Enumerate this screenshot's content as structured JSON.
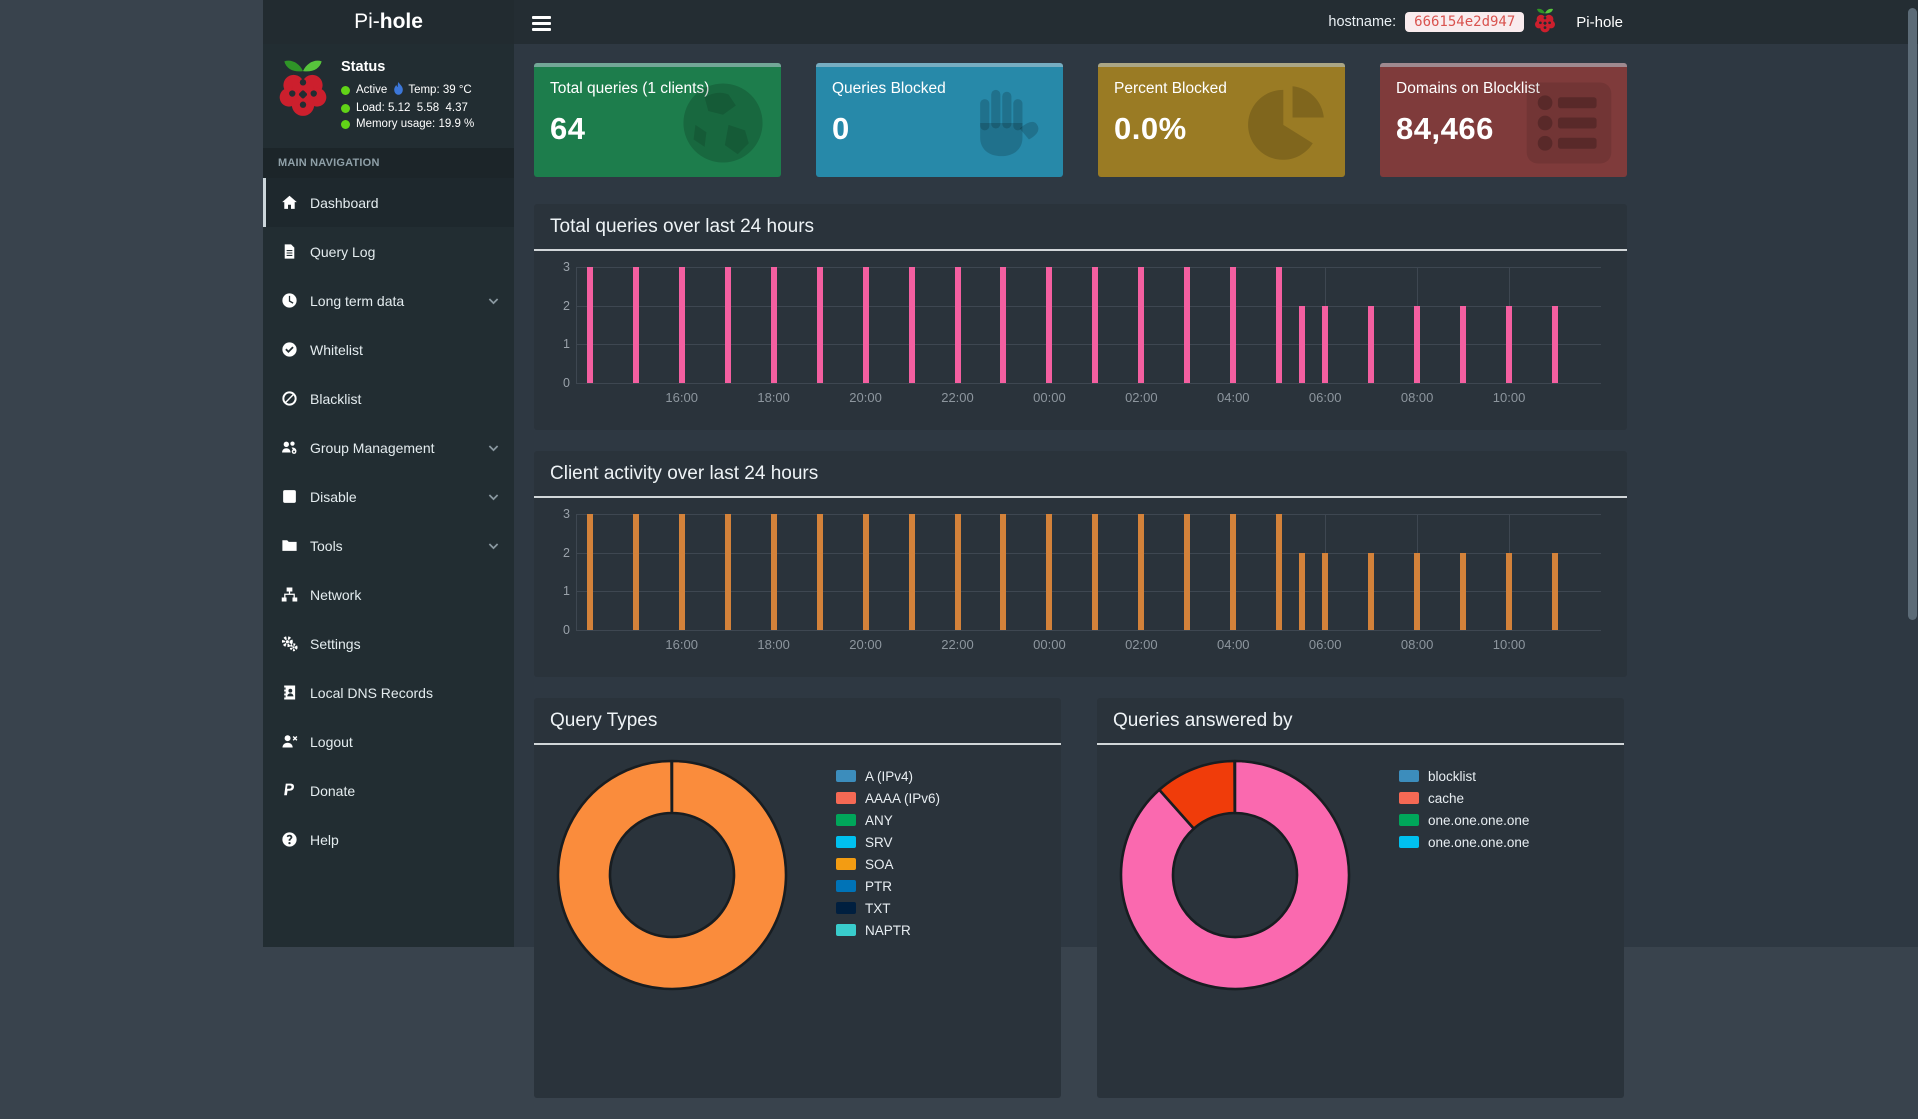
{
  "header": {
    "brand_prefix": "Pi-",
    "brand_suffix": "hole",
    "hostname_label": "hostname:",
    "hostname_value": "666154e2d947",
    "brand_right": "Pi-hole"
  },
  "sidebar": {
    "status": {
      "title": "Status",
      "active_label": "Active",
      "temp_text": "Temp: 39 °C",
      "load_label": "Load:",
      "load_values": "5.12  5.58  4.37",
      "memory_label": "Memory usage:",
      "memory_value": "19.9 %",
      "dot_color": "#61d317",
      "flame_color": "#3c77d9"
    },
    "section_label": "MAIN NAVIGATION",
    "items": [
      {
        "label": "Dashboard",
        "icon": "home",
        "active": true
      },
      {
        "label": "Query Log",
        "icon": "file"
      },
      {
        "label": "Long term data",
        "icon": "clock",
        "expandable": true
      },
      {
        "label": "Whitelist",
        "icon": "check-circle"
      },
      {
        "label": "Blacklist",
        "icon": "ban"
      },
      {
        "label": "Group Management",
        "icon": "users-gear",
        "expandable": true
      },
      {
        "label": "Disable",
        "icon": "square",
        "expandable": true
      },
      {
        "label": "Tools",
        "icon": "folder",
        "expandable": true
      },
      {
        "label": "Network",
        "icon": "sitemap"
      },
      {
        "label": "Settings",
        "icon": "gears"
      },
      {
        "label": "Local DNS Records",
        "icon": "address-book"
      },
      {
        "label": "Logout",
        "icon": "user-x"
      },
      {
        "label": "Donate",
        "icon": "paypal"
      },
      {
        "label": "Help",
        "icon": "question-circle"
      }
    ]
  },
  "cards": [
    {
      "label": "Total queries (1 clients)",
      "value": "64",
      "color": "#1d7d4c",
      "icon": "globe"
    },
    {
      "label": "Queries Blocked",
      "value": "0",
      "color": "#2789a9",
      "icon": "hand"
    },
    {
      "label": "Percent Blocked",
      "value": "0.0%",
      "color": "#9a7b24",
      "icon": "pie"
    },
    {
      "label": "Domains on Blocklist",
      "value": "84,466",
      "color": "#7f3b3b",
      "icon": "list"
    }
  ],
  "chart_data": [
    {
      "type": "bar",
      "title": "Total queries over last 24 hours",
      "color": "#f45fa0",
      "ylim": [
        0,
        3
      ],
      "y_ticks": [
        0,
        1,
        2,
        3
      ],
      "grid": true,
      "x_domain_hours": [
        13.7,
        36.0
      ],
      "x_ticks": [
        {
          "t": 16,
          "label": "16:00"
        },
        {
          "t": 18,
          "label": "18:00"
        },
        {
          "t": 20,
          "label": "20:00"
        },
        {
          "t": 22,
          "label": "22:00"
        },
        {
          "t": 24,
          "label": "00:00"
        },
        {
          "t": 26,
          "label": "02:00"
        },
        {
          "t": 28,
          "label": "04:00"
        },
        {
          "t": 30,
          "label": "06:00"
        },
        {
          "t": 32,
          "label": "08:00"
        },
        {
          "t": 34,
          "label": "10:00"
        }
      ],
      "bars": [
        {
          "t": 14,
          "time": "14:00",
          "v": 3
        },
        {
          "t": 15,
          "time": "15:00",
          "v": 3
        },
        {
          "t": 16,
          "time": "16:00",
          "v": 3
        },
        {
          "t": 17,
          "time": "17:00",
          "v": 3
        },
        {
          "t": 18,
          "time": "18:00",
          "v": 3
        },
        {
          "t": 19,
          "time": "19:00",
          "v": 3
        },
        {
          "t": 20,
          "time": "20:00",
          "v": 3
        },
        {
          "t": 21,
          "time": "21:00",
          "v": 3
        },
        {
          "t": 22,
          "time": "22:00",
          "v": 3
        },
        {
          "t": 23,
          "time": "23:00",
          "v": 3
        },
        {
          "t": 24,
          "time": "00:00",
          "v": 3
        },
        {
          "t": 25,
          "time": "01:00",
          "v": 3
        },
        {
          "t": 26,
          "time": "02:00",
          "v": 3
        },
        {
          "t": 27,
          "time": "03:00",
          "v": 3
        },
        {
          "t": 28,
          "time": "04:00",
          "v": 3
        },
        {
          "t": 29,
          "time": "05:00",
          "v": 3
        },
        {
          "t": 29.5,
          "time": "05:30",
          "v": 2
        },
        {
          "t": 30,
          "time": "06:00",
          "v": 2
        },
        {
          "t": 31,
          "time": "07:00",
          "v": 2
        },
        {
          "t": 32,
          "time": "08:00",
          "v": 2
        },
        {
          "t": 33,
          "time": "09:00",
          "v": 2
        },
        {
          "t": 34,
          "time": "10:00",
          "v": 2
        },
        {
          "t": 35,
          "time": "11:00",
          "v": 2
        }
      ]
    },
    {
      "type": "bar",
      "title": "Client activity over last 24 hours",
      "color": "#d3823a",
      "ylim": [
        0,
        3
      ],
      "y_ticks": [
        0,
        1,
        2,
        3
      ],
      "grid": true,
      "x_domain_hours": [
        13.7,
        36.0
      ],
      "x_ticks": [
        {
          "t": 16,
          "label": "16:00"
        },
        {
          "t": 18,
          "label": "18:00"
        },
        {
          "t": 20,
          "label": "20:00"
        },
        {
          "t": 22,
          "label": "22:00"
        },
        {
          "t": 24,
          "label": "00:00"
        },
        {
          "t": 26,
          "label": "02:00"
        },
        {
          "t": 28,
          "label": "04:00"
        },
        {
          "t": 30,
          "label": "06:00"
        },
        {
          "t": 32,
          "label": "08:00"
        },
        {
          "t": 34,
          "label": "10:00"
        }
      ],
      "bars": [
        {
          "t": 14,
          "time": "14:00",
          "v": 3
        },
        {
          "t": 15,
          "time": "15:00",
          "v": 3
        },
        {
          "t": 16,
          "time": "16:00",
          "v": 3
        },
        {
          "t": 17,
          "time": "17:00",
          "v": 3
        },
        {
          "t": 18,
          "time": "18:00",
          "v": 3
        },
        {
          "t": 19,
          "time": "19:00",
          "v": 3
        },
        {
          "t": 20,
          "time": "20:00",
          "v": 3
        },
        {
          "t": 21,
          "time": "21:00",
          "v": 3
        },
        {
          "t": 22,
          "time": "22:00",
          "v": 3
        },
        {
          "t": 23,
          "time": "23:00",
          "v": 3
        },
        {
          "t": 24,
          "time": "00:00",
          "v": 3
        },
        {
          "t": 25,
          "time": "01:00",
          "v": 3
        },
        {
          "t": 26,
          "time": "02:00",
          "v": 3
        },
        {
          "t": 27,
          "time": "03:00",
          "v": 3
        },
        {
          "t": 28,
          "time": "04:00",
          "v": 3
        },
        {
          "t": 29,
          "time": "05:00",
          "v": 3
        },
        {
          "t": 29.5,
          "time": "05:30",
          "v": 2
        },
        {
          "t": 30,
          "time": "06:00",
          "v": 2
        },
        {
          "t": 31,
          "time": "07:00",
          "v": 2
        },
        {
          "t": 32,
          "time": "08:00",
          "v": 2
        },
        {
          "t": 33,
          "time": "09:00",
          "v": 2
        },
        {
          "t": 34,
          "time": "10:00",
          "v": 2
        },
        {
          "t": 35,
          "time": "11:00",
          "v": 2
        }
      ]
    },
    {
      "type": "donut",
      "title": "Query Types",
      "segments": [
        {
          "value": 100,
          "color": "#fa8c3c"
        }
      ],
      "legend": [
        {
          "label": "A (IPv4)",
          "color": "#3c8dbc"
        },
        {
          "label": "AAAA (IPv6)",
          "color": "#f56954"
        },
        {
          "label": "ANY",
          "color": "#00a65a"
        },
        {
          "label": "SRV",
          "color": "#00c0ef"
        },
        {
          "label": "SOA",
          "color": "#f39c12"
        },
        {
          "label": "PTR",
          "color": "#0073b7"
        },
        {
          "label": "TXT",
          "color": "#001f3f"
        },
        {
          "label": "NAPTR",
          "color": "#39cccc"
        }
      ]
    },
    {
      "type": "donut",
      "title": "Queries answered by",
      "segments": [
        {
          "value": 88.5,
          "color": "#fa69af"
        },
        {
          "value": 11.5,
          "color": "#f03c0a"
        }
      ],
      "legend": [
        {
          "label": "blocklist",
          "color": "#3c8dbc"
        },
        {
          "label": "cache",
          "color": "#f56954"
        },
        {
          "label": "one.one.one.one",
          "color": "#00a65a"
        },
        {
          "label": "one.one.one.one",
          "color": "#00c0ef"
        }
      ]
    }
  ],
  "scrollbar": {
    "thumb_color": "#5c6b77"
  }
}
